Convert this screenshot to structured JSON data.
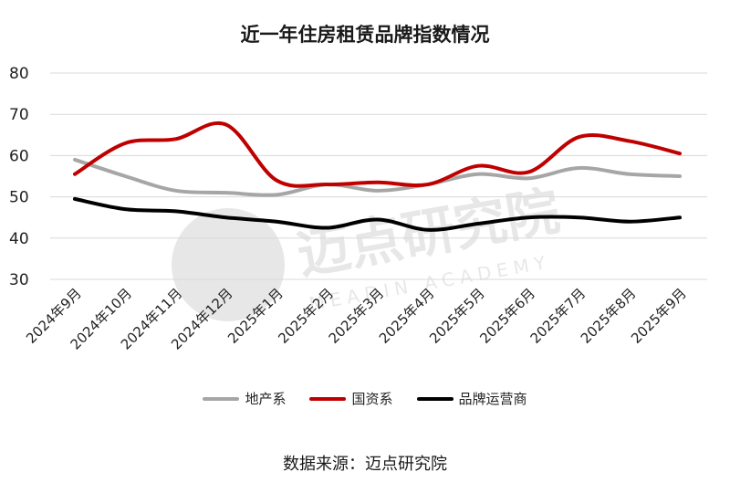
{
  "chart_data": {
    "type": "line",
    "title": "近一年住房租赁品牌指数情况",
    "categories": [
      "2024年9月",
      "2024年10月",
      "2024年11月",
      "2024年12月",
      "2025年1月",
      "2025年2月",
      "2025年3月",
      "2025年4月",
      "2025年5月",
      "2025年6月",
      "2025年7月",
      "2025年8月",
      "2025年9月"
    ],
    "ylim": [
      30,
      80
    ],
    "yticks": [
      30,
      40,
      50,
      60,
      70,
      80
    ],
    "grid": "horizontal",
    "legend_position": "bottom",
    "series": [
      {
        "name": "地产系",
        "color": "#a6a6a6",
        "values": [
          59,
          55,
          51.5,
          51,
          50.5,
          53,
          51.5,
          53,
          55.5,
          54.5,
          57,
          55.5,
          55
        ]
      },
      {
        "name": "国资系",
        "color": "#c00000",
        "values": [
          55.5,
          63,
          64,
          67.5,
          54,
          53,
          53.5,
          53,
          57.5,
          56,
          64.5,
          63.5,
          60.5
        ]
      },
      {
        "name": "品牌运营商",
        "color": "#000000",
        "values": [
          49.5,
          47,
          46.5,
          45,
          44,
          42.5,
          44.5,
          42,
          43.5,
          45,
          45,
          44,
          45
        ]
      }
    ]
  },
  "source_note": "数据来源：迈点研究院",
  "watermark": {
    "text": "迈点研究院",
    "subtext": "MEADIN ACADEMY"
  }
}
